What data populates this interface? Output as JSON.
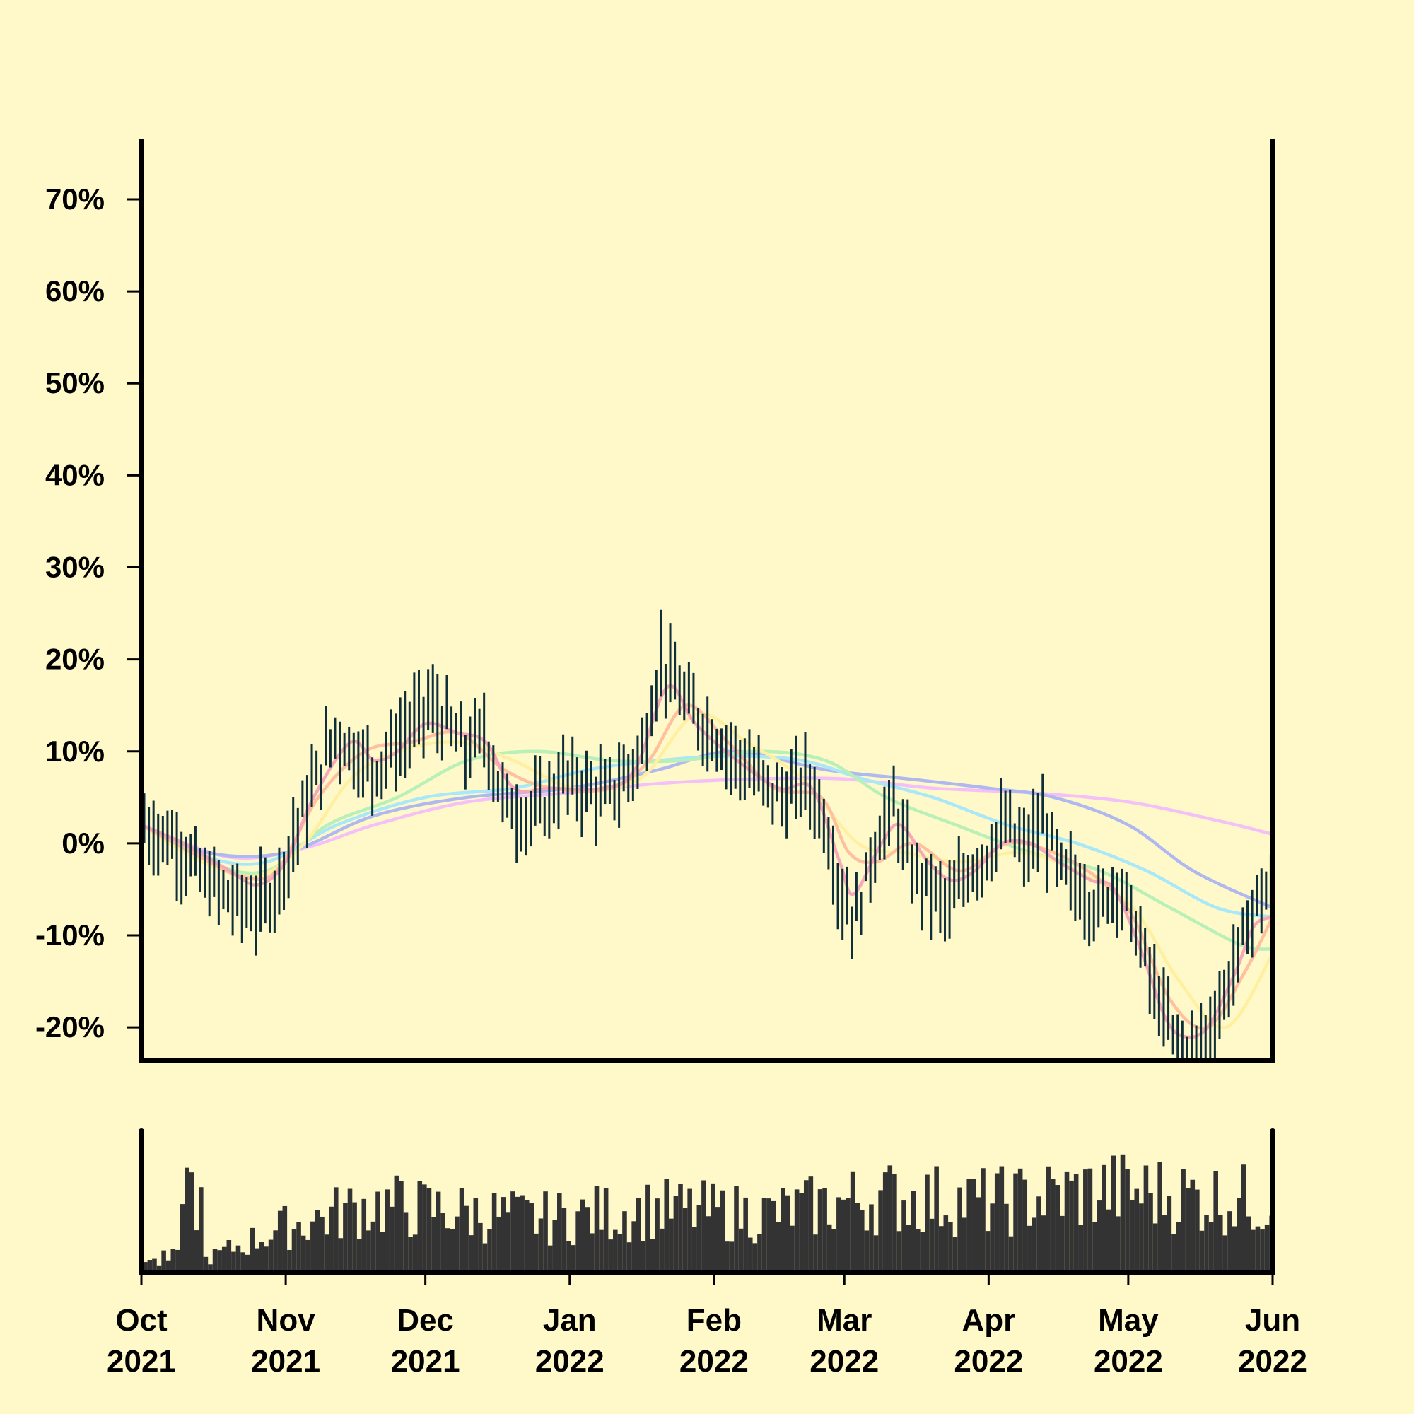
{
  "chart_data": {
    "type": "ohlc-with-volume",
    "title": "",
    "xlabel": "",
    "ylabel": "",
    "ylim": [
      -0.236,
      0.763
    ],
    "y_ticks": [
      {
        "value": 0.7,
        "label": "70%"
      },
      {
        "value": 0.6,
        "label": "60%"
      },
      {
        "value": 0.5,
        "label": "50%"
      },
      {
        "value": 0.4,
        "label": "40%"
      },
      {
        "value": 0.3,
        "label": "30%"
      },
      {
        "value": 0.2,
        "label": "20%"
      },
      {
        "value": 0.1,
        "label": "10%"
      },
      {
        "value": 0.0,
        "label": "0%"
      },
      {
        "value": -0.1,
        "label": "-10%"
      },
      {
        "value": -0.2,
        "label": "-20%"
      }
    ],
    "xlim": [
      "2021-10-01",
      "2022-06-01"
    ],
    "x_ticks": [
      {
        "date": "2021-10-01",
        "month": "Oct",
        "year": "2021"
      },
      {
        "date": "2021-11-01",
        "month": "Nov",
        "year": "2021"
      },
      {
        "date": "2021-12-01",
        "month": "Dec",
        "year": "2021"
      },
      {
        "date": "2022-01-01",
        "month": "Jan",
        "year": "2022"
      },
      {
        "date": "2022-02-01",
        "month": "Feb",
        "year": "2022"
      },
      {
        "date": "2022-03-01",
        "month": "Mar",
        "year": "2022"
      },
      {
        "date": "2022-04-01",
        "month": "Apr",
        "year": "2022"
      },
      {
        "date": "2022-05-01",
        "month": "May",
        "year": "2022"
      },
      {
        "date": "2022-06-01",
        "month": "Jun",
        "year": "2022"
      }
    ],
    "grid": false,
    "legend": "none",
    "price_path": [
      [
        "2021-10-01",
        0.02
      ],
      [
        "2021-10-04",
        0.01
      ],
      [
        "2021-10-08",
        0.0
      ],
      [
        "2021-10-14",
        -0.04
      ],
      [
        "2021-10-20",
        -0.06
      ],
      [
        "2021-10-25",
        -0.07
      ],
      [
        "2021-10-29",
        -0.05
      ],
      [
        "2021-11-03",
        0.02
      ],
      [
        "2021-11-07",
        0.07
      ],
      [
        "2021-11-11",
        0.12
      ],
      [
        "2021-11-15",
        0.1
      ],
      [
        "2021-11-19",
        0.08
      ],
      [
        "2021-11-23",
        0.1
      ],
      [
        "2021-11-28",
        0.13
      ],
      [
        "2021-12-01",
        0.15
      ],
      [
        "2021-12-05",
        0.13
      ],
      [
        "2021-12-09",
        0.1
      ],
      [
        "2021-12-13",
        0.12
      ],
      [
        "2021-12-17",
        0.05
      ],
      [
        "2021-12-21",
        0.03
      ],
      [
        "2021-12-26",
        0.04
      ],
      [
        "2021-12-30",
        0.07
      ],
      [
        "2022-01-04",
        0.06
      ],
      [
        "2022-01-08",
        0.05
      ],
      [
        "2022-01-12",
        0.07
      ],
      [
        "2022-01-16",
        0.1
      ],
      [
        "2022-01-20",
        0.2
      ],
      [
        "2022-01-23",
        0.17
      ],
      [
        "2022-01-27",
        0.14
      ],
      [
        "2022-01-31",
        0.12
      ],
      [
        "2022-02-04",
        0.1
      ],
      [
        "2022-02-08",
        0.08
      ],
      [
        "2022-02-12",
        0.06
      ],
      [
        "2022-02-16",
        0.05
      ],
      [
        "2022-02-20",
        0.07
      ],
      [
        "2022-02-24",
        0.03
      ],
      [
        "2022-02-28",
        -0.06
      ],
      [
        "2022-03-03",
        -0.08
      ],
      [
        "2022-03-07",
        0.0
      ],
      [
        "2022-03-11",
        0.04
      ],
      [
        "2022-03-15",
        -0.03
      ],
      [
        "2022-03-19",
        -0.05
      ],
      [
        "2022-03-23",
        -0.07
      ],
      [
        "2022-03-27",
        -0.03
      ],
      [
        "2022-03-31",
        -0.01
      ],
      [
        "2022-04-04",
        0.02
      ],
      [
        "2022-04-08",
        -0.01
      ],
      [
        "2022-04-12",
        0.02
      ],
      [
        "2022-04-16",
        -0.03
      ],
      [
        "2022-04-20",
        -0.05
      ],
      [
        "2022-04-24",
        -0.07
      ],
      [
        "2022-04-28",
        -0.04
      ],
      [
        "2022-05-02",
        -0.09
      ],
      [
        "2022-05-06",
        -0.16
      ],
      [
        "2022-05-10",
        -0.21
      ],
      [
        "2022-05-14",
        -0.23
      ],
      [
        "2022-05-17",
        -0.21
      ],
      [
        "2022-05-20",
        -0.18
      ],
      [
        "2022-05-24",
        -0.12
      ],
      [
        "2022-05-28",
        -0.06
      ],
      [
        "2022-06-01",
        -0.05
      ]
    ],
    "moving_averages": [
      {
        "color": "#f7a8b8",
        "points": [
          [
            "2021-10-01",
            0.02
          ],
          [
            "2021-10-10",
            0.0
          ],
          [
            "2021-10-20",
            -0.03
          ],
          [
            "2021-10-26",
            -0.045
          ],
          [
            "2021-11-01",
            -0.02
          ],
          [
            "2021-11-07",
            0.05
          ],
          [
            "2021-11-15",
            0.11
          ],
          [
            "2021-11-20",
            0.09
          ],
          [
            "2021-11-25",
            0.1
          ],
          [
            "2021-12-01",
            0.13
          ],
          [
            "2021-12-08",
            0.12
          ],
          [
            "2021-12-14",
            0.11
          ],
          [
            "2021-12-20",
            0.06
          ],
          [
            "2021-12-28",
            0.06
          ],
          [
            "2022-01-08",
            0.06
          ],
          [
            "2022-01-15",
            0.08
          ],
          [
            "2022-01-22",
            0.17
          ],
          [
            "2022-01-28",
            0.13
          ],
          [
            "2022-02-06",
            0.09
          ],
          [
            "2022-02-15",
            0.06
          ],
          [
            "2022-02-22",
            0.06
          ],
          [
            "2022-02-28",
            -0.02
          ],
          [
            "2022-03-03",
            -0.055
          ],
          [
            "2022-03-09",
            0.0
          ],
          [
            "2022-03-13",
            0.02
          ],
          [
            "2022-03-19",
            -0.02
          ],
          [
            "2022-03-24",
            -0.04
          ],
          [
            "2022-03-29",
            -0.03
          ],
          [
            "2022-04-04",
            0.0
          ],
          [
            "2022-04-10",
            0.0
          ],
          [
            "2022-04-16",
            -0.02
          ],
          [
            "2022-04-23",
            -0.04
          ],
          [
            "2022-04-28",
            -0.05
          ],
          [
            "2022-05-04",
            -0.12
          ],
          [
            "2022-05-09",
            -0.19
          ],
          [
            "2022-05-13",
            -0.21
          ],
          [
            "2022-05-18",
            -0.2
          ],
          [
            "2022-05-24",
            -0.14
          ],
          [
            "2022-05-28",
            -0.09
          ],
          [
            "2022-06-01",
            -0.08
          ]
        ]
      },
      {
        "color": "#ffc0a0",
        "points": [
          [
            "2021-10-01",
            0.02
          ],
          [
            "2021-10-12",
            -0.01
          ],
          [
            "2021-10-22",
            -0.035
          ],
          [
            "2021-10-30",
            -0.03
          ],
          [
            "2021-11-08",
            0.05
          ],
          [
            "2021-11-18",
            0.1
          ],
          [
            "2021-11-28",
            0.11
          ],
          [
            "2021-12-08",
            0.12
          ],
          [
            "2021-12-18",
            0.08
          ],
          [
            "2021-12-28",
            0.06
          ],
          [
            "2022-01-10",
            0.06
          ],
          [
            "2022-01-18",
            0.09
          ],
          [
            "2022-01-26",
            0.15
          ],
          [
            "2022-02-04",
            0.11
          ],
          [
            "2022-02-14",
            0.06
          ],
          [
            "2022-02-24",
            0.05
          ],
          [
            "2022-03-02",
            -0.01
          ],
          [
            "2022-03-08",
            -0.02
          ],
          [
            "2022-03-16",
            0.0
          ],
          [
            "2022-03-26",
            -0.03
          ],
          [
            "2022-04-05",
            0.0
          ],
          [
            "2022-04-15",
            -0.01
          ],
          [
            "2022-04-25",
            -0.04
          ],
          [
            "2022-05-02",
            -0.08
          ],
          [
            "2022-05-10",
            -0.17
          ],
          [
            "2022-05-18",
            -0.2
          ],
          [
            "2022-05-26",
            -0.14
          ],
          [
            "2022-06-01",
            -0.08
          ]
        ]
      },
      {
        "color": "#fff0a0",
        "points": [
          [
            "2021-10-01",
            0.02
          ],
          [
            "2021-10-14",
            -0.02
          ],
          [
            "2021-10-26",
            -0.035
          ],
          [
            "2021-11-05",
            0.0
          ],
          [
            "2021-11-15",
            0.07
          ],
          [
            "2021-11-25",
            0.1
          ],
          [
            "2021-12-08",
            0.11
          ],
          [
            "2021-12-20",
            0.09
          ],
          [
            "2022-01-02",
            0.06
          ],
          [
            "2022-01-16",
            0.07
          ],
          [
            "2022-01-28",
            0.14
          ],
          [
            "2022-02-08",
            0.11
          ],
          [
            "2022-02-20",
            0.07
          ],
          [
            "2022-03-04",
            0.0
          ],
          [
            "2022-03-14",
            -0.01
          ],
          [
            "2022-03-26",
            -0.02
          ],
          [
            "2022-04-08",
            -0.01
          ],
          [
            "2022-04-20",
            -0.03
          ],
          [
            "2022-05-02",
            -0.07
          ],
          [
            "2022-05-12",
            -0.15
          ],
          [
            "2022-05-22",
            -0.2
          ],
          [
            "2022-06-01",
            -0.12
          ]
        ]
      },
      {
        "color": "#b8f0b8",
        "points": [
          [
            "2021-10-01",
            0.02
          ],
          [
            "2021-10-15",
            -0.02
          ],
          [
            "2021-10-28",
            -0.03
          ],
          [
            "2021-11-10",
            0.02
          ],
          [
            "2021-11-25",
            0.05
          ],
          [
            "2021-12-10",
            0.09
          ],
          [
            "2021-12-25",
            0.1
          ],
          [
            "2022-01-10",
            0.09
          ],
          [
            "2022-01-25",
            0.09
          ],
          [
            "2022-02-10",
            0.1
          ],
          [
            "2022-02-25",
            0.09
          ],
          [
            "2022-03-10",
            0.05
          ],
          [
            "2022-03-25",
            0.02
          ],
          [
            "2022-04-10",
            -0.01
          ],
          [
            "2022-04-25",
            -0.03
          ],
          [
            "2022-05-10",
            -0.07
          ],
          [
            "2022-05-25",
            -0.11
          ],
          [
            "2022-06-01",
            -0.115
          ]
        ]
      },
      {
        "color": "#a8e8f8",
        "points": [
          [
            "2021-10-01",
            0.02
          ],
          [
            "2021-10-15",
            -0.015
          ],
          [
            "2021-10-28",
            -0.02
          ],
          [
            "2021-11-12",
            0.02
          ],
          [
            "2021-12-01",
            0.05
          ],
          [
            "2021-12-20",
            0.06
          ],
          [
            "2022-01-05",
            0.08
          ],
          [
            "2022-01-20",
            0.09
          ],
          [
            "2022-02-05",
            0.095
          ],
          [
            "2022-02-20",
            0.09
          ],
          [
            "2022-03-05",
            0.07
          ],
          [
            "2022-03-20",
            0.05
          ],
          [
            "2022-04-05",
            0.02
          ],
          [
            "2022-04-20",
            0.0
          ],
          [
            "2022-05-05",
            -0.03
          ],
          [
            "2022-05-20",
            -0.07
          ],
          [
            "2022-06-01",
            -0.08
          ]
        ]
      },
      {
        "color": "#b0b8f0",
        "points": [
          [
            "2021-10-01",
            0.02
          ],
          [
            "2021-10-15",
            -0.01
          ],
          [
            "2021-11-01",
            -0.01
          ],
          [
            "2021-11-20",
            0.03
          ],
          [
            "2021-12-10",
            0.05
          ],
          [
            "2022-01-01",
            0.06
          ],
          [
            "2022-01-20",
            0.08
          ],
          [
            "2022-02-05",
            0.1
          ],
          [
            "2022-02-25",
            0.08
          ],
          [
            "2022-03-15",
            0.07
          ],
          [
            "2022-04-01",
            0.06
          ],
          [
            "2022-04-15",
            0.05
          ],
          [
            "2022-05-01",
            0.02
          ],
          [
            "2022-05-15",
            -0.03
          ],
          [
            "2022-06-01",
            -0.07
          ]
        ]
      },
      {
        "color": "#f4c0f8",
        "points": [
          [
            "2021-10-01",
            0.02
          ],
          [
            "2021-10-20",
            -0.015
          ],
          [
            "2021-11-05",
            -0.005
          ],
          [
            "2021-11-20",
            0.02
          ],
          [
            "2021-12-10",
            0.045
          ],
          [
            "2022-01-01",
            0.055
          ],
          [
            "2022-01-20",
            0.065
          ],
          [
            "2022-02-10",
            0.07
          ],
          [
            "2022-03-01",
            0.07
          ],
          [
            "2022-03-20",
            0.06
          ],
          [
            "2022-04-10",
            0.055
          ],
          [
            "2022-05-01",
            0.045
          ],
          [
            "2022-05-20",
            0.025
          ],
          [
            "2022-06-01",
            0.01
          ]
        ]
      }
    ],
    "bar_color": "#0e2e3a",
    "volume_color": "#333333",
    "volume_relative": [
      [
        0.05,
        0.12
      ],
      [
        0.12,
        0.45
      ],
      [
        0.2,
        0.7
      ],
      [
        0.35,
        0.55
      ],
      [
        0.45,
        0.65
      ],
      [
        0.55,
        0.6
      ],
      [
        0.65,
        0.78
      ],
      [
        0.75,
        0.72
      ],
      [
        0.85,
        0.85
      ],
      [
        1.0,
        0.72
      ]
    ],
    "colors": {
      "background": "#fff8c8",
      "axis": "#000000"
    }
  }
}
